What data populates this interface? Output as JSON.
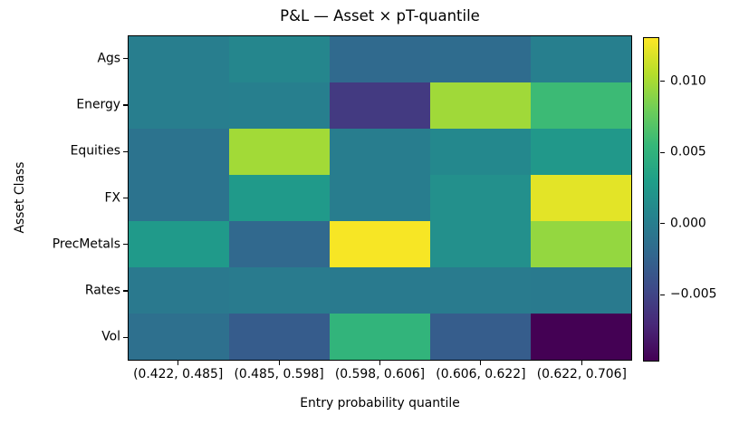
{
  "title": "P&L — Asset × pT-quantile",
  "xlabel": "Entry probability quantile",
  "ylabel": "Asset Class",
  "colors": {
    "background": "#ffffff",
    "text": "#000000",
    "axis": "#000000"
  },
  "chart_data": {
    "type": "heatmap",
    "title": "P&L — Asset × pT-quantile",
    "xlabel": "Entry probability quantile",
    "ylabel": "Asset Class",
    "colormap": "viridis",
    "vmin": -0.0097,
    "vmax": 0.0131,
    "rows": [
      "Ags",
      "Energy",
      "Equities",
      "FX",
      "PrecMetals",
      "Rates",
      "Vol"
    ],
    "columns": [
      "(0.422, 0.485]",
      "(0.485, 0.598]",
      "(0.598, 0.606]",
      "(0.606, 0.622]",
      "(0.622, 0.706]"
    ],
    "values": [
      [
        0.0,
        0.0008,
        -0.0019,
        -0.0017,
        0.0001
      ],
      [
        0.0,
        0.0001,
        -0.0058,
        0.0098,
        0.0058
      ],
      [
        -0.001,
        0.0099,
        -0.0001,
        0.001,
        0.0024
      ],
      [
        -0.001,
        0.0026,
        -0.0001,
        0.0017,
        0.0122
      ],
      [
        0.0026,
        -0.002,
        0.0129,
        0.0017,
        0.0094
      ],
      [
        -0.0004,
        -0.0002,
        -0.0003,
        -0.0002,
        -0.0003
      ],
      [
        -0.0013,
        -0.0031,
        0.0052,
        -0.003,
        -0.0097
      ]
    ],
    "colorbar": {
      "tick_values": [
        0.01,
        0.005,
        0.0,
        -0.005
      ],
      "tick_labels": [
        "0.010",
        "0.005",
        "0.000",
        "−0.005"
      ],
      "position": "right"
    },
    "viridis_stops": [
      "#440154",
      "#482878",
      "#3e4a89",
      "#31688e",
      "#26828e",
      "#1f9e89",
      "#35b779",
      "#6ece58",
      "#b5de2b",
      "#fde725"
    ],
    "grid": false,
    "legend": false
  }
}
